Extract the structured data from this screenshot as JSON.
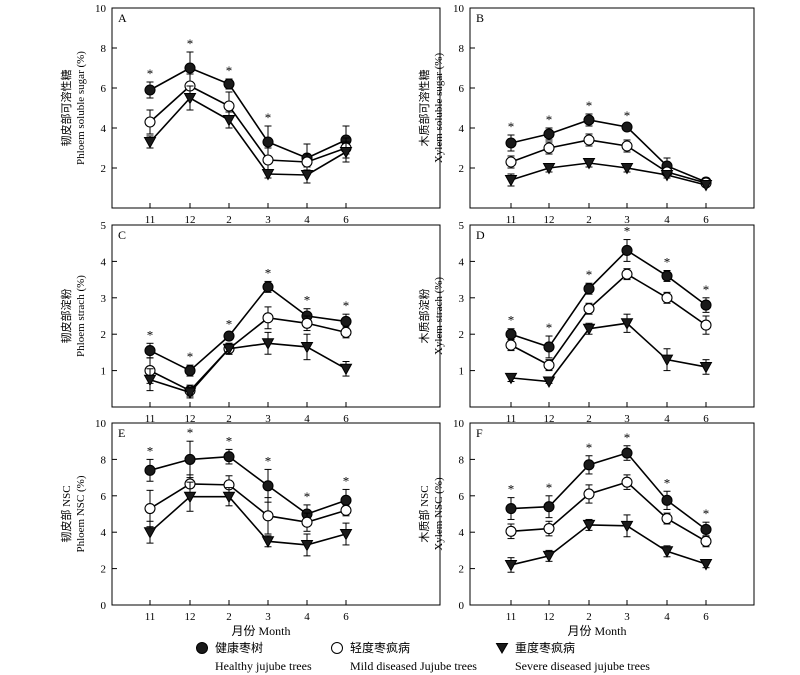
{
  "figure": {
    "legend": [
      {
        "marker": "filled-circle",
        "label_zh": "健康枣树",
        "label_en": "Healthy jujube trees"
      },
      {
        "marker": "open-circle",
        "label_zh": "轻度枣疯病",
        "label_en": "Mild diseased Jujube trees"
      },
      {
        "marker": "filled-triangle-down",
        "label_zh": "重度枣疯病",
        "label_en": "Severe diseased jujube trees"
      }
    ],
    "colors": {
      "healthy": "#1a1a1a",
      "mild": "#ffffff",
      "severe": "#1a1a1a",
      "axis": "#000000"
    }
  },
  "chart_data": [
    {
      "type": "line",
      "panel": "A",
      "ylabel_zh": "韧皮部可溶性糖",
      "ylabel_en": "Phloem soluble sugar (%)",
      "xlabel": "",
      "categories": [
        "11",
        "12",
        "2",
        "3",
        "4",
        "6"
      ],
      "ylim": [
        0,
        10
      ],
      "yticks": [
        2,
        4,
        6,
        8,
        10
      ],
      "series": [
        {
          "name": "Healthy jujube trees",
          "values": [
            5.9,
            7.0,
            6.2,
            3.3,
            2.5,
            3.4
          ],
          "err": [
            0.4,
            0.8,
            0.25,
            0.8,
            0.7,
            0.7
          ]
        },
        {
          "name": "Mild diseased Jujube trees",
          "values": [
            4.3,
            6.1,
            5.1,
            2.4,
            2.3,
            3.0
          ],
          "err": [
            0.6,
            0.6,
            0.7,
            0.6,
            0.4,
            0.5
          ]
        },
        {
          "name": "Severe diseased jujube trees",
          "values": [
            3.3,
            5.5,
            4.4,
            1.7,
            1.65,
            2.8
          ],
          "err": [
            0.3,
            0.6,
            0.4,
            0.2,
            0.4,
            0.5
          ]
        }
      ],
      "significant": [
        true,
        true,
        true,
        true,
        false,
        false
      ]
    },
    {
      "type": "line",
      "panel": "B",
      "ylabel_zh": "木质部可溶性糖",
      "ylabel_en": "Xylem soluble sugar (%)",
      "xlabel": "",
      "categories": [
        "11",
        "12",
        "2",
        "3",
        "4",
        "6"
      ],
      "ylim": [
        0,
        10
      ],
      "yticks": [
        2,
        4,
        6,
        8,
        10
      ],
      "series": [
        {
          "name": "Healthy jujube trees",
          "values": [
            3.25,
            3.7,
            4.4,
            4.05,
            2.1,
            1.3
          ],
          "err": [
            0.4,
            0.3,
            0.3,
            0.15,
            0.4,
            0.2
          ]
        },
        {
          "name": "Mild diseased Jujube trees",
          "values": [
            2.3,
            3.0,
            3.4,
            3.1,
            1.8,
            1.25
          ],
          "err": [
            0.3,
            0.3,
            0.3,
            0.3,
            0.2,
            0.15
          ]
        },
        {
          "name": "Severe diseased jujube trees",
          "values": [
            1.4,
            2.0,
            2.25,
            2.0,
            1.65,
            1.15
          ],
          "err": [
            0.3,
            0.2,
            0.2,
            0.2,
            0.15,
            0.1
          ]
        }
      ],
      "significant": [
        true,
        true,
        true,
        true,
        false,
        false
      ]
    },
    {
      "type": "line",
      "panel": "C",
      "ylabel_zh": "韧皮部淀粉",
      "ylabel_en": "Phloem strach (%)",
      "xlabel": "",
      "categories": [
        "11",
        "12",
        "2",
        "3",
        "4",
        "6"
      ],
      "ylim": [
        0,
        5
      ],
      "yticks": [
        1,
        2,
        3,
        4,
        5
      ],
      "series": [
        {
          "name": "Healthy jujube trees",
          "values": [
            1.55,
            1.0,
            1.95,
            3.3,
            2.5,
            2.35
          ],
          "err": [
            0.2,
            0.15,
            0.1,
            0.15,
            0.2,
            0.2
          ]
        },
        {
          "name": "Mild diseased Jujube trees",
          "values": [
            1.0,
            0.45,
            1.6,
            2.45,
            2.3,
            2.05
          ],
          "err": [
            0.35,
            0.15,
            0.15,
            0.3,
            0.2,
            0.15
          ]
        },
        {
          "name": "Severe diseased jujube trees",
          "values": [
            0.75,
            0.4,
            1.6,
            1.75,
            1.65,
            1.05
          ],
          "err": [
            0.3,
            0.15,
            0.15,
            0.3,
            0.35,
            0.2
          ]
        }
      ],
      "significant": [
        true,
        true,
        true,
        true,
        true,
        true
      ]
    },
    {
      "type": "line",
      "panel": "D",
      "ylabel_zh": "木质部淀粉",
      "ylabel_en": "Xylem strach (%)",
      "xlabel": "",
      "categories": [
        "11",
        "12",
        "2",
        "3",
        "4",
        "6"
      ],
      "ylim": [
        0,
        5
      ],
      "yticks": [
        1,
        2,
        3,
        4,
        5
      ],
      "series": [
        {
          "name": "Healthy jujube trees",
          "values": [
            2.0,
            1.65,
            3.25,
            4.3,
            3.6,
            2.8
          ],
          "err": [
            0.15,
            0.3,
            0.15,
            0.3,
            0.15,
            0.2
          ]
        },
        {
          "name": "Mild diseased Jujube trees",
          "values": [
            1.7,
            1.15,
            2.7,
            3.65,
            3.0,
            2.25
          ],
          "err": [
            0.15,
            0.15,
            0.15,
            0.15,
            0.15,
            0.25
          ]
        },
        {
          "name": "Severe diseased jujube trees",
          "values": [
            0.8,
            0.7,
            2.15,
            2.3,
            1.3,
            1.1
          ],
          "err": [
            0.1,
            0.05,
            0.15,
            0.25,
            0.3,
            0.2
          ]
        }
      ],
      "significant": [
        true,
        true,
        true,
        true,
        true,
        true
      ]
    },
    {
      "type": "line",
      "panel": "E",
      "ylabel_zh": "韧皮部 NSC",
      "ylabel_en": "Phloem NSC (%)",
      "xlabel": "月份 Month",
      "categories": [
        "11",
        "12",
        "2",
        "3",
        "4",
        "6"
      ],
      "ylim": [
        0,
        10
      ],
      "yticks": [
        0,
        2,
        4,
        6,
        8,
        10
      ],
      "series": [
        {
          "name": "Healthy jujube trees",
          "values": [
            7.4,
            8.0,
            8.15,
            6.55,
            5.0,
            5.75
          ],
          "err": [
            0.6,
            1.0,
            0.4,
            0.9,
            0.5,
            0.6
          ]
        },
        {
          "name": "Mild diseased Jujube trees",
          "values": [
            5.3,
            6.65,
            6.6,
            4.9,
            4.55,
            5.2
          ],
          "err": [
            1.0,
            0.5,
            0.5,
            1.0,
            0.5,
            0.3
          ]
        },
        {
          "name": "Severe diseased jujube trees",
          "values": [
            4.0,
            5.95,
            5.95,
            3.5,
            3.3,
            3.9
          ],
          "err": [
            0.6,
            0.8,
            0.5,
            0.3,
            0.6,
            0.6
          ]
        }
      ],
      "significant": [
        true,
        true,
        true,
        true,
        true,
        true
      ]
    },
    {
      "type": "line",
      "panel": "F",
      "ylabel_zh": "木质部 NSC",
      "ylabel_en": "Xylem NSC (%)",
      "xlabel": "月份 Month",
      "categories": [
        "11",
        "12",
        "2",
        "3",
        "4",
        "6"
      ],
      "ylim": [
        0,
        10
      ],
      "yticks": [
        0,
        2,
        4,
        6,
        8,
        10
      ],
      "series": [
        {
          "name": "Healthy jujube trees",
          "values": [
            5.3,
            5.4,
            7.7,
            8.35,
            5.75,
            4.15
          ],
          "err": [
            0.6,
            0.6,
            0.5,
            0.4,
            0.5,
            0.4
          ]
        },
        {
          "name": "Mild diseased Jujube trees",
          "values": [
            4.05,
            4.2,
            6.1,
            6.75,
            4.75,
            3.5
          ],
          "err": [
            0.4,
            0.4,
            0.5,
            0.4,
            0.3,
            0.3
          ]
        },
        {
          "name": "Severe diseased jujube trees",
          "values": [
            2.2,
            2.7,
            4.4,
            4.35,
            2.95,
            2.25
          ],
          "err": [
            0.4,
            0.3,
            0.3,
            0.6,
            0.3,
            0.2
          ]
        }
      ],
      "significant": [
        true,
        true,
        true,
        true,
        true,
        true
      ]
    }
  ]
}
